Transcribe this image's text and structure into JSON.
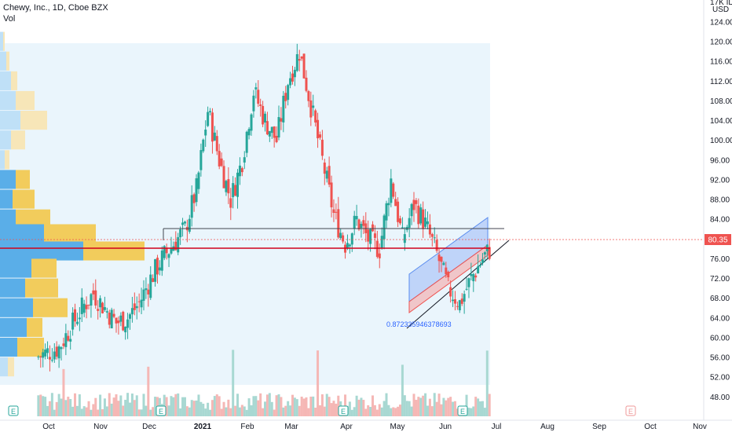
{
  "header": {
    "symbol_line": "Chewy, Inc., 1D, Cboe BZX",
    "volume_label": "Vol"
  },
  "price_axis": {
    "currency_label": "USD",
    "scale_label": "17K ID",
    "ticks": [
      "124.00",
      "120.00",
      "116.00",
      "112.00",
      "108.00",
      "104.00",
      "100.00",
      "96.00",
      "92.00",
      "88.00",
      "84.00",
      "80.00",
      "76.00",
      "72.00",
      "68.00",
      "64.00",
      "60.00",
      "56.00",
      "52.00",
      "48.00"
    ]
  },
  "time_axis": {
    "labels": [
      "Oct",
      "Nov",
      "Dec",
      "2021",
      "Feb",
      "Mar",
      "Apr",
      "May",
      "Jun",
      "Jul",
      "Aug",
      "Sep",
      "Oct",
      "Nov"
    ]
  },
  "last_price": "80.35",
  "annotations": {
    "fib_text": "0.872335946378693"
  },
  "earnings_markers": [
    "E",
    "E",
    "E",
    "E",
    "E"
  ],
  "colors": {
    "up": "#26a69a",
    "down": "#ef5350",
    "volume_up": "#a8d8d2",
    "volume_down": "#f5b7b5",
    "profile_blue": "#5aaee8",
    "profile_blue_light": "#bfe0f7",
    "profile_yellow": "#f2cc5c",
    "profile_yellow_light": "#f7e6b8",
    "red_line": "#d0021b",
    "channel_blue": "#9bb8f5",
    "channel_red": "#f4a6a6",
    "range_bg": "#eaf5fc"
  },
  "chart_data": {
    "type": "candlestick",
    "title": "Chewy, Inc., 1D, Cboe BZX",
    "y_unit": "USD",
    "ylim": [
      46,
      126
    ],
    "x_labels": [
      "Oct",
      "Nov",
      "Dec",
      "2021",
      "Feb",
      "Mar",
      "Apr",
      "May",
      "Jun",
      "Jul",
      "Aug",
      "Sep",
      "Oct",
      "Nov"
    ],
    "close_path": [
      [
        "2020-09-24",
        56
      ],
      [
        "2020-10-01",
        57
      ],
      [
        "2020-10-08",
        58
      ],
      [
        "2020-10-15",
        62
      ],
      [
        "2020-10-22",
        66
      ],
      [
        "2020-10-29",
        69
      ],
      [
        "2020-11-05",
        66
      ],
      [
        "2020-11-12",
        63
      ],
      [
        "2020-11-19",
        64
      ],
      [
        "2020-11-26",
        67
      ],
      [
        "2020-12-03",
        72
      ],
      [
        "2020-12-10",
        76
      ],
      [
        "2020-12-17",
        79
      ],
      [
        "2020-12-24",
        82
      ],
      [
        "2020-12-31",
        90
      ],
      [
        "2021-01-07",
        106
      ],
      [
        "2021-01-14",
        96
      ],
      [
        "2021-01-21",
        88
      ],
      [
        "2021-01-28",
        96
      ],
      [
        "2021-02-04",
        110
      ],
      [
        "2021-02-11",
        104
      ],
      [
        "2021-02-18",
        100
      ],
      [
        "2021-02-25",
        112
      ],
      [
        "2021-03-04",
        118
      ],
      [
        "2021-03-11",
        107
      ],
      [
        "2021-03-18",
        96
      ],
      [
        "2021-03-25",
        85
      ],
      [
        "2021-04-01",
        79
      ],
      [
        "2021-04-08",
        84
      ],
      [
        "2021-04-15",
        80
      ],
      [
        "2021-04-22",
        78
      ],
      [
        "2021-04-29",
        92
      ],
      [
        "2021-05-06",
        80
      ],
      [
        "2021-05-13",
        87
      ],
      [
        "2021-05-20",
        83
      ],
      [
        "2021-05-27",
        77
      ],
      [
        "2021-06-03",
        70
      ],
      [
        "2021-06-10",
        67
      ],
      [
        "2021-06-17",
        72
      ],
      [
        "2021-06-24",
        76
      ],
      [
        "2021-07-01",
        79
      ],
      [
        "2021-07-08",
        80.35
      ]
    ],
    "horizontal_levels": [
      {
        "price": 82.2,
        "style": "dark"
      },
      {
        "price": 78.5,
        "style": "red"
      }
    ],
    "last_price": 80.35
  }
}
